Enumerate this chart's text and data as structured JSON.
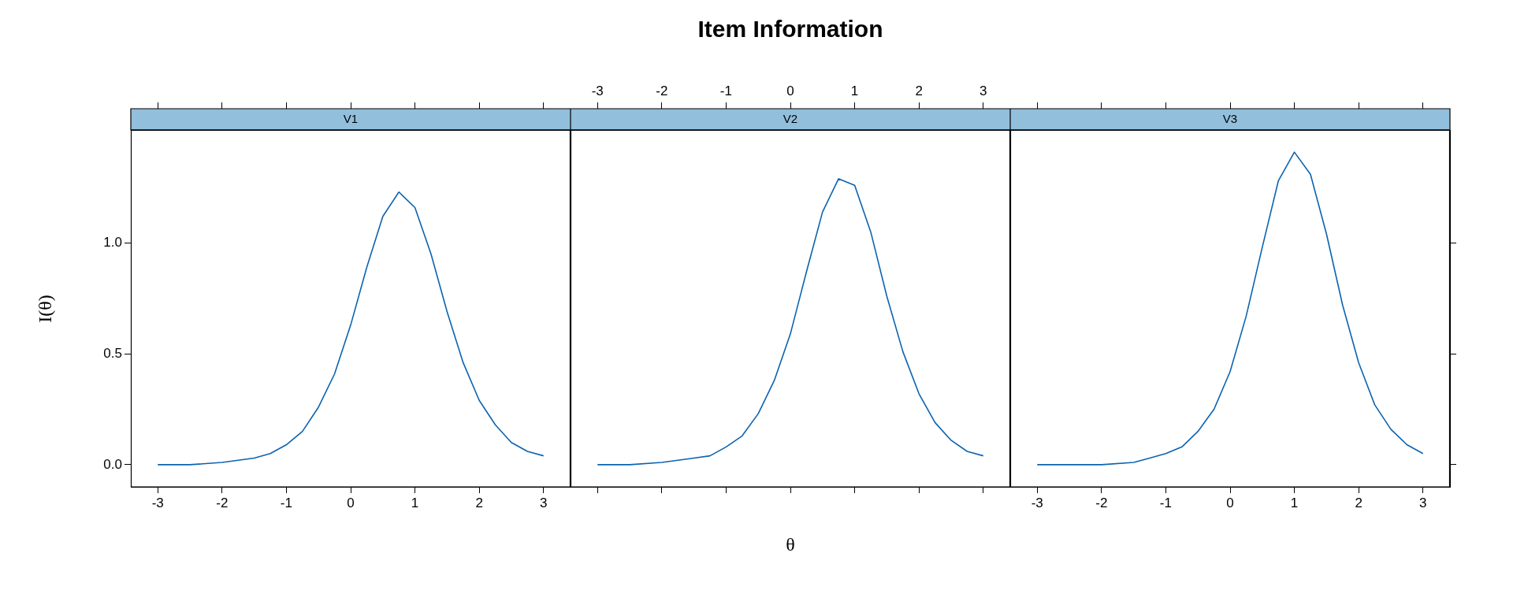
{
  "chart_data": [
    {
      "type": "line",
      "ylabel": "I(θ)",
      "subtitle": "V1",
      "xlim": [
        -3.42,
        3.42
      ],
      "xticks": [
        -3,
        -2,
        -1,
        0,
        1,
        2,
        3
      ],
      "ylim": [
        -0.1,
        1.51
      ],
      "yticks": [
        {
          "value": 0,
          "label": "0.0"
        },
        {
          "value": 0.5,
          "label": "0.5"
        },
        {
          "value": 1,
          "label": "1.0"
        }
      ],
      "x": [
        -3,
        -2.5,
        -2,
        -1.5,
        -1.25,
        -1,
        -0.75,
        -0.5,
        -0.25,
        0,
        0.25,
        0.5,
        0.75,
        1,
        1.25,
        1.5,
        1.75,
        2,
        2.25,
        2.5,
        2.75,
        3
      ],
      "series": [
        {
          "color": "#0b63b0",
          "values": [
            0.0,
            0.0,
            0.01,
            0.03,
            0.05,
            0.09,
            0.15,
            0.26,
            0.41,
            0.63,
            0.89,
            1.12,
            1.23,
            1.16,
            0.95,
            0.69,
            0.46,
            0.29,
            0.18,
            0.1,
            0.06,
            0.04
          ]
        }
      ]
    },
    {
      "type": "line",
      "title": "Item Information",
      "xlabel": "θ",
      "subtitle": "V2",
      "tick_labels": "x",
      "xlim": [
        -3.42,
        3.42
      ],
      "xticks": [
        -3,
        -2,
        -1,
        0,
        1,
        2,
        3
      ],
      "ylim": [
        -0.1,
        1.51
      ],
      "x": [
        -3,
        -2.5,
        -2,
        -1.5,
        -1.25,
        -1,
        -0.75,
        -0.5,
        -0.25,
        0,
        0.25,
        0.5,
        0.75,
        1,
        1.25,
        1.5,
        1.75,
        2,
        2.25,
        2.5,
        2.75,
        3
      ],
      "series": [
        {
          "color": "#0b63b0",
          "values": [
            0.0,
            0.0,
            0.01,
            0.03,
            0.04,
            0.08,
            0.13,
            0.23,
            0.38,
            0.59,
            0.87,
            1.14,
            1.29,
            1.26,
            1.05,
            0.76,
            0.51,
            0.32,
            0.19,
            0.11,
            0.06,
            0.04
          ]
        }
      ]
    },
    {
      "type": "line",
      "subtitle": "V3",
      "tick_labels": "x",
      "xlim": [
        -3.42,
        3.42
      ],
      "xticks": [
        -3,
        -2,
        -1,
        0,
        1,
        2,
        3
      ],
      "ylim": [
        -0.1,
        1.51
      ],
      "yticks": [
        {
          "value": 0,
          "label": null
        },
        {
          "value": 0.5,
          "label": null
        },
        {
          "value": 1,
          "label": null
        }
      ],
      "x": [
        -3,
        -2.5,
        -2,
        -1.5,
        -1.25,
        -1,
        -0.75,
        -0.5,
        -0.25,
        0,
        0.25,
        0.5,
        0.75,
        1,
        1.25,
        1.5,
        1.75,
        2,
        2.25,
        2.5,
        2.75,
        3
      ],
      "series": [
        {
          "color": "#0b63b0",
          "values": [
            0.0,
            0.0,
            0.0,
            0.01,
            0.03,
            0.05,
            0.08,
            0.15,
            0.25,
            0.42,
            0.67,
            0.98,
            1.28,
            1.41,
            1.31,
            1.04,
            0.72,
            0.46,
            0.27,
            0.16,
            0.09,
            0.05
          ]
        }
      ]
    }
  ]
}
